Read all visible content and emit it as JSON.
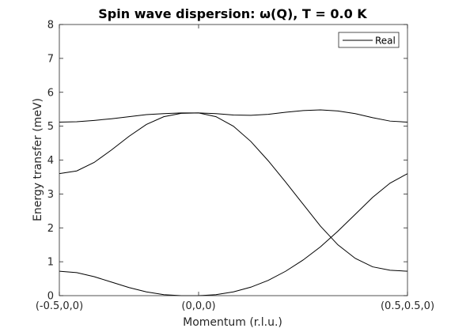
{
  "chart_data": {
    "type": "line",
    "title": "Spin wave dispersion: ω(Q), T =   0.0 K",
    "xlabel": "Momentum (r.l.u.)",
    "ylabel": "Energy transfer (meV)",
    "xlim": [
      0,
      1
    ],
    "ylim": [
      0,
      8
    ],
    "xtick_positions": [
      0,
      0.4,
      1
    ],
    "xtick_labels": [
      "(-0.5,0,0)",
      "(0,0,0)",
      "(0.5,0.5,0)"
    ],
    "ytick_labels": [
      "0",
      "1",
      "2",
      "3",
      "4",
      "5",
      "6",
      "7",
      "8"
    ],
    "grid": false,
    "legend": {
      "entries": [
        "Real"
      ],
      "location": "top-right"
    },
    "series": [
      {
        "name": "Real",
        "color": "#000000",
        "x": [
          0,
          0.05,
          0.1,
          0.15,
          0.2,
          0.25,
          0.3,
          0.35,
          0.4,
          0.45,
          0.5,
          0.55,
          0.6,
          0.65,
          0.7,
          0.75,
          0.8,
          0.85,
          0.9,
          0.95,
          1.0
        ],
        "y": [
          0.72,
          0.68,
          0.56,
          0.4,
          0.24,
          0.11,
          0.03,
          0.0,
          0.0,
          0.03,
          0.11,
          0.25,
          0.45,
          0.72,
          1.05,
          1.44,
          1.9,
          2.4,
          2.9,
          3.32,
          3.6
        ]
      },
      {
        "name": "",
        "color": "#000000",
        "x": [
          0,
          0.05,
          0.1,
          0.15,
          0.2,
          0.25,
          0.3,
          0.35,
          0.4,
          0.45,
          0.5,
          0.55,
          0.6,
          0.65,
          0.7,
          0.75,
          0.8,
          0.85,
          0.9,
          0.95,
          1.0
        ],
        "y": [
          3.6,
          3.68,
          3.93,
          4.3,
          4.7,
          5.05,
          5.28,
          5.38,
          5.39,
          5.28,
          5.0,
          4.55,
          3.98,
          3.35,
          2.7,
          2.05,
          1.5,
          1.1,
          0.85,
          0.75,
          0.72
        ]
      },
      {
        "name": "",
        "color": "#000000",
        "x": [
          0,
          0.05,
          0.1,
          0.15,
          0.2,
          0.25,
          0.3,
          0.35,
          0.4,
          0.45,
          0.5,
          0.55,
          0.6,
          0.65,
          0.7,
          0.75,
          0.8,
          0.85,
          0.9,
          0.95,
          1.0
        ],
        "y": [
          5.12,
          5.13,
          5.17,
          5.22,
          5.28,
          5.34,
          5.37,
          5.39,
          5.39,
          5.37,
          5.33,
          5.32,
          5.35,
          5.41,
          5.46,
          5.48,
          5.45,
          5.37,
          5.25,
          5.15,
          5.12
        ]
      }
    ]
  }
}
